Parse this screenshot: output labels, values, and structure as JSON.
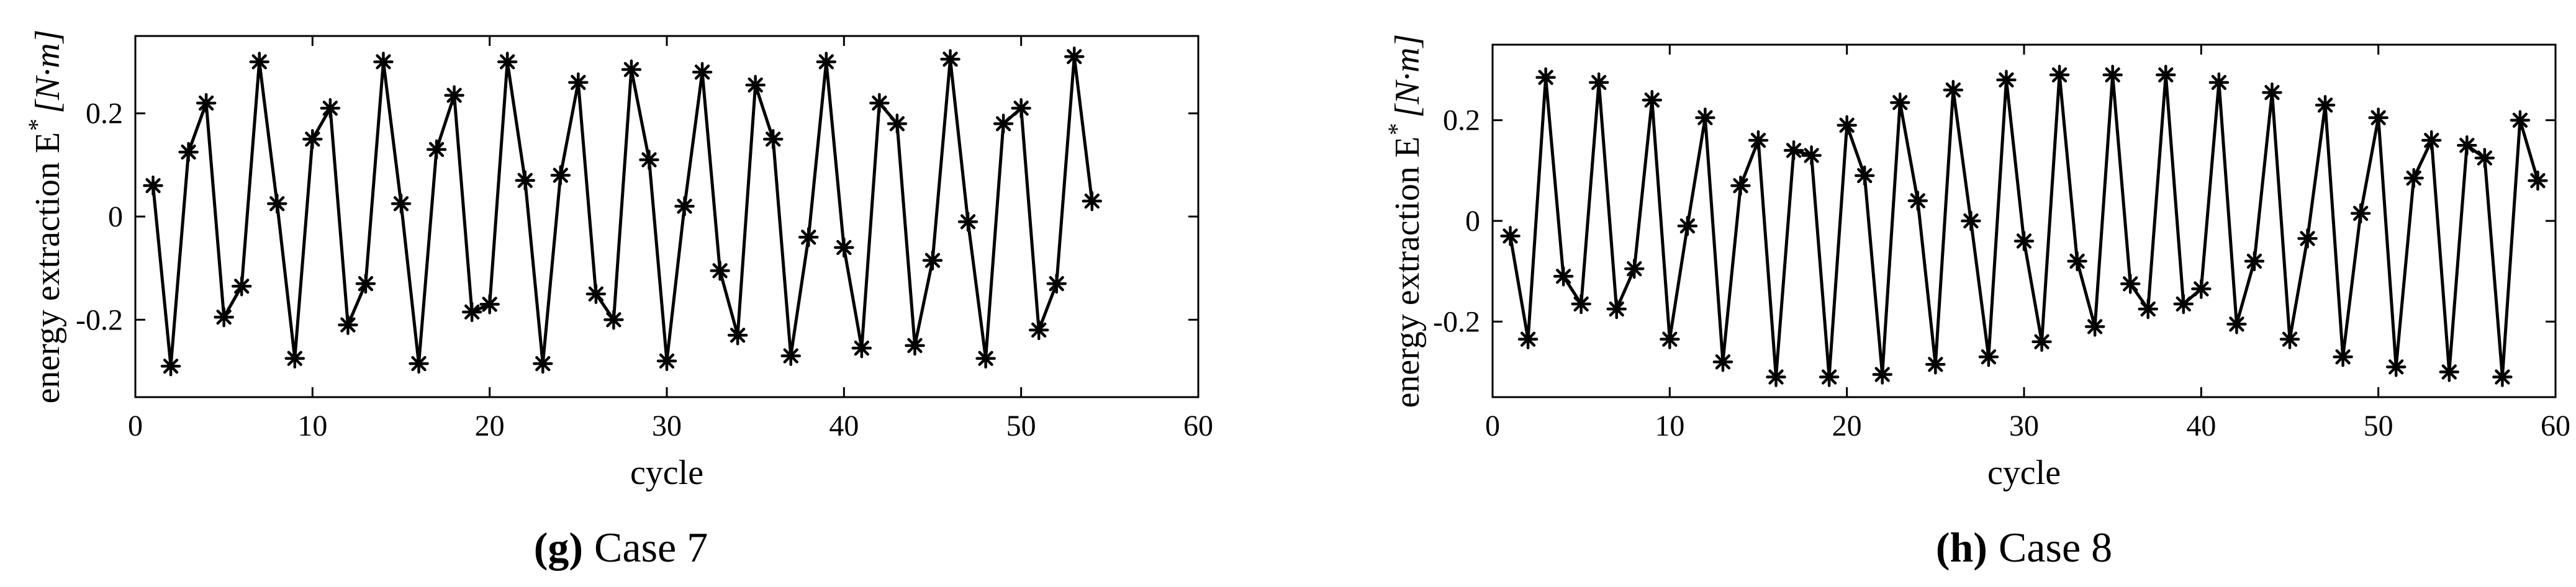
{
  "chart_data": [
    {
      "type": "line",
      "caption_letter": "(g)",
      "caption_text": "Case 7",
      "xlabel": "cycle",
      "ylabel": "energy extraction E",
      "ylabel_sup": "*",
      "ylabel_unit": "[N·m]",
      "xlim": [
        0,
        60
      ],
      "ylim": [
        -0.35,
        0.35
      ],
      "xticks": [
        0,
        10,
        20,
        30,
        40,
        50,
        60
      ],
      "yticks": [
        -0.2,
        0,
        0.2
      ],
      "xtick_labels": [
        "0",
        "10",
        "20",
        "30",
        "40",
        "50",
        "60"
      ],
      "ytick_labels": [
        "-0.2",
        "0",
        "0.2"
      ],
      "marker": "asterisk",
      "grid": false,
      "x": [
        1,
        2,
        3,
        4,
        5,
        6,
        7,
        8,
        9,
        10,
        11,
        12,
        13,
        14,
        15,
        16,
        17,
        18,
        19,
        20,
        21,
        22,
        23,
        24,
        25,
        26,
        27,
        28,
        29,
        30,
        31,
        32,
        33,
        34,
        35,
        36,
        37,
        38,
        39,
        40,
        41,
        42,
        43,
        44,
        45,
        46,
        47,
        48,
        49,
        50,
        51,
        52,
        53,
        54
      ],
      "y": [
        0.06,
        -0.29,
        0.125,
        0.22,
        -0.195,
        -0.135,
        0.3,
        0.025,
        -0.275,
        0.15,
        0.21,
        -0.21,
        -0.13,
        0.3,
        0.025,
        -0.285,
        0.13,
        0.235,
        -0.185,
        -0.17,
        0.3,
        0.07,
        -0.285,
        0.08,
        0.26,
        -0.15,
        -0.2,
        0.285,
        0.11,
        -0.28,
        0.02,
        0.28,
        -0.105,
        -0.23,
        0.255,
        0.15,
        -0.27,
        -0.04,
        0.3,
        -0.06,
        -0.255,
        0.22,
        0.18,
        -0.25,
        -0.085,
        0.305,
        -0.01,
        -0.275,
        0.18,
        0.21,
        -0.22,
        -0.13,
        0.31,
        0.03
      ]
    },
    {
      "type": "line",
      "caption_letter": "(h)",
      "caption_text": "Case 8",
      "xlabel": "cycle",
      "ylabel": "energy extraction E",
      "ylabel_sup": "*",
      "ylabel_unit": "[N·m]",
      "xlim": [
        0,
        60
      ],
      "ylim": [
        -0.35,
        0.35
      ],
      "xticks": [
        0,
        10,
        20,
        30,
        40,
        50,
        60
      ],
      "yticks": [
        -0.2,
        0,
        0.2
      ],
      "xtick_labels": [
        "0",
        "10",
        "20",
        "30",
        "40",
        "50",
        "60"
      ],
      "ytick_labels": [
        "-0.2",
        "0",
        "0.2"
      ],
      "marker": "asterisk",
      "grid": false,
      "x": [
        1,
        2,
        3,
        4,
        5,
        6,
        7,
        8,
        9,
        10,
        11,
        12,
        13,
        14,
        15,
        16,
        17,
        18,
        19,
        20,
        21,
        22,
        23,
        24,
        25,
        26,
        27,
        28,
        29,
        30,
        31,
        32,
        33,
        34,
        35,
        36,
        37,
        38,
        39,
        40,
        41,
        42,
        43,
        44,
        45,
        46,
        47,
        48,
        49,
        50,
        51,
        52,
        53,
        54,
        55,
        56,
        57,
        58,
        59
      ],
      "y": [
        -0.03,
        -0.235,
        0.285,
        -0.11,
        -0.165,
        0.275,
        -0.175,
        -0.095,
        0.24,
        -0.235,
        -0.01,
        0.205,
        -0.28,
        0.07,
        0.16,
        -0.31,
        0.14,
        0.13,
        -0.31,
        0.19,
        0.09,
        -0.305,
        0.235,
        0.04,
        -0.285,
        0.26,
        0.0,
        -0.27,
        0.28,
        -0.04,
        -0.24,
        0.29,
        -0.08,
        -0.21,
        0.29,
        -0.125,
        -0.175,
        0.29,
        -0.165,
        -0.135,
        0.275,
        -0.205,
        -0.08,
        0.255,
        -0.235,
        -0.035,
        0.23,
        -0.27,
        0.015,
        0.205,
        -0.29,
        0.085,
        0.16,
        -0.3,
        0.15,
        0.125,
        -0.31,
        0.2,
        0.08
      ]
    }
  ]
}
